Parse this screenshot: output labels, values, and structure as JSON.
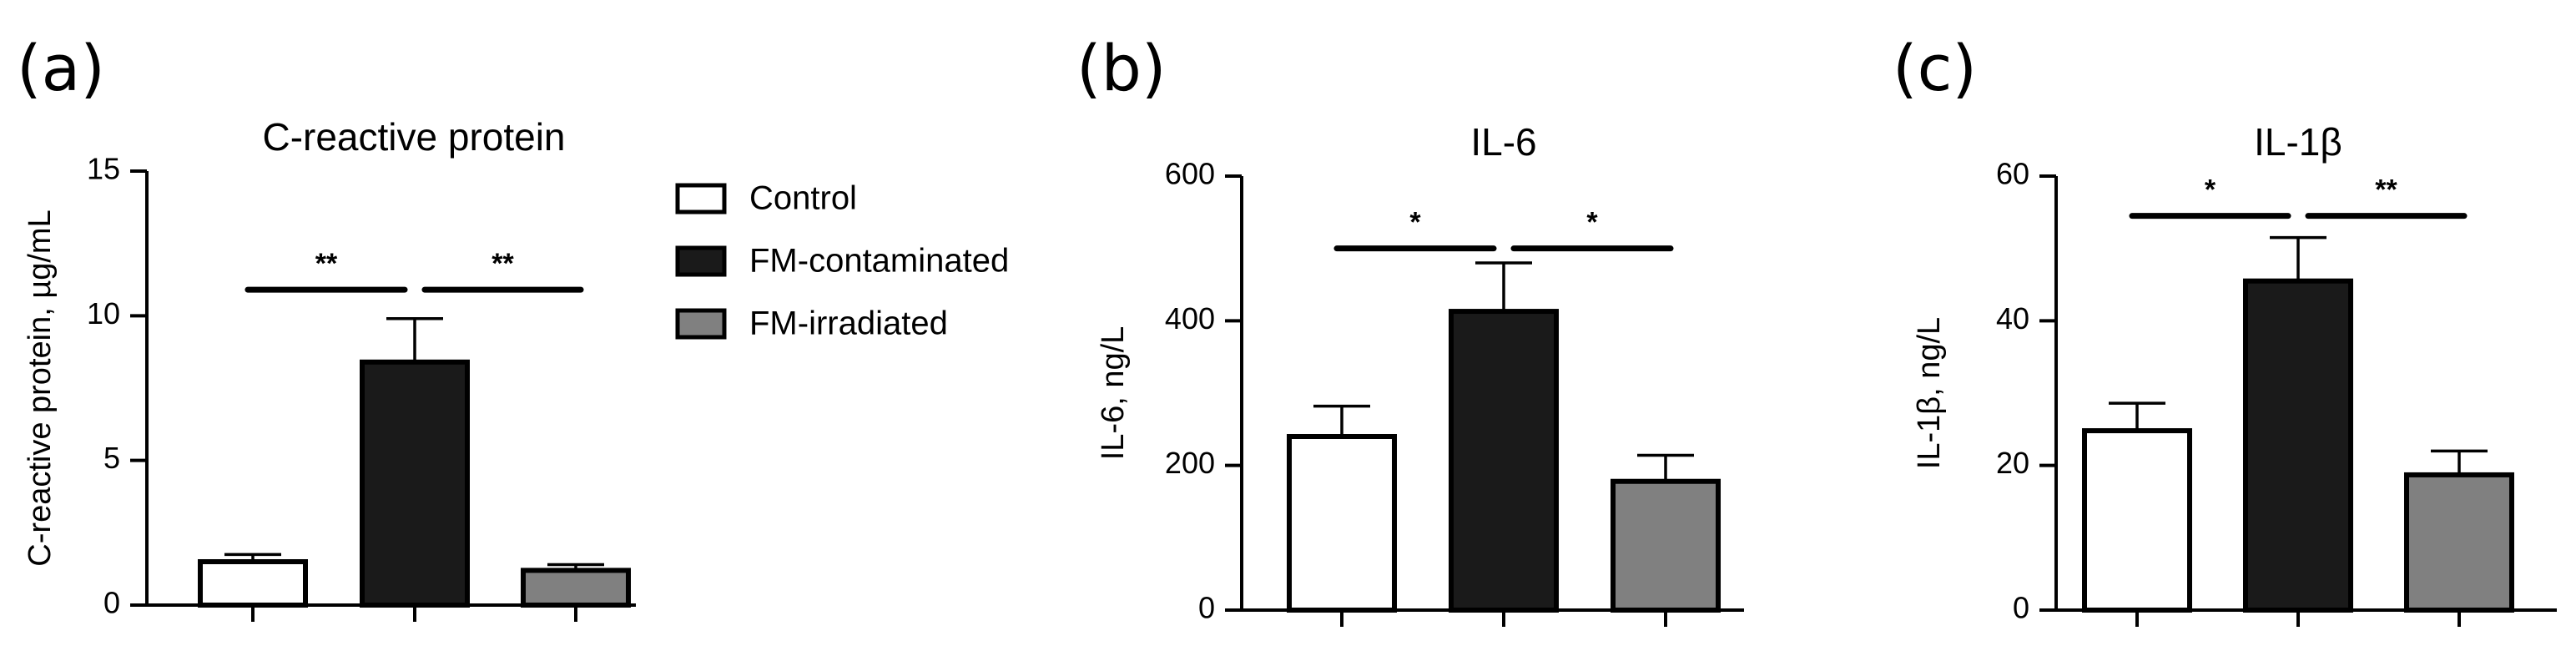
{
  "figure": {
    "legend": [
      {
        "label": "Control",
        "color": "#ffffff"
      },
      {
        "label": "FM-contaminated",
        "color": "#1a1a1a"
      },
      {
        "label": "FM-irradiated",
        "color": "#808080"
      }
    ]
  },
  "chart_data": [
    {
      "panel_label": "(a)",
      "type": "bar",
      "title": "C-reactive protein",
      "xlabel": "",
      "ylabel": "C-reactive protein, µg/mL",
      "categories": [
        "Control",
        "FM-contaminated",
        "FM-irradiated"
      ],
      "values": [
        1.5,
        8.4,
        1.2
      ],
      "errors": [
        0.25,
        1.5,
        0.2
      ],
      "colors": [
        "#ffffff",
        "#1a1a1a",
        "#808080"
      ],
      "ylim": [
        0,
        15
      ],
      "yticks": [
        0,
        5,
        10,
        15
      ],
      "significance": [
        {
          "from": 0,
          "to": 1,
          "label": "**",
          "y": 10.9
        },
        {
          "from": 1,
          "to": 2,
          "label": "**",
          "y": 10.9
        }
      ]
    },
    {
      "panel_label": "(b)",
      "type": "bar",
      "title": "IL-6",
      "xlabel": "",
      "ylabel": "IL-6, ng/L",
      "categories": [
        "Control",
        "FM-contaminated",
        "FM-irradiated"
      ],
      "values": [
        240,
        413,
        178
      ],
      "errors": [
        42,
        67,
        36
      ],
      "colors": [
        "#ffffff",
        "#1a1a1a",
        "#808080"
      ],
      "ylim": [
        0,
        600
      ],
      "yticks": [
        0,
        200,
        400,
        600
      ],
      "significance": [
        {
          "from": 0,
          "to": 1,
          "label": "*",
          "y": 500
        },
        {
          "from": 1,
          "to": 2,
          "label": "*",
          "y": 500
        }
      ]
    },
    {
      "panel_label": "(c)",
      "type": "bar",
      "title": "IL-1β",
      "xlabel": "",
      "ylabel": "IL-1β, ng/L",
      "categories": [
        "Control",
        "FM-contaminated",
        "FM-irradiated"
      ],
      "values": [
        24.8,
        45.5,
        18.7
      ],
      "errors": [
        3.8,
        6.0,
        3.3
      ],
      "colors": [
        "#ffffff",
        "#1a1a1a",
        "#808080"
      ],
      "ylim": [
        0,
        60
      ],
      "yticks": [
        0,
        20,
        40,
        60
      ],
      "significance": [
        {
          "from": 0,
          "to": 1,
          "label": "*",
          "y": 54.5
        },
        {
          "from": 1,
          "to": 2,
          "label": "**",
          "y": 54.5
        }
      ]
    }
  ]
}
